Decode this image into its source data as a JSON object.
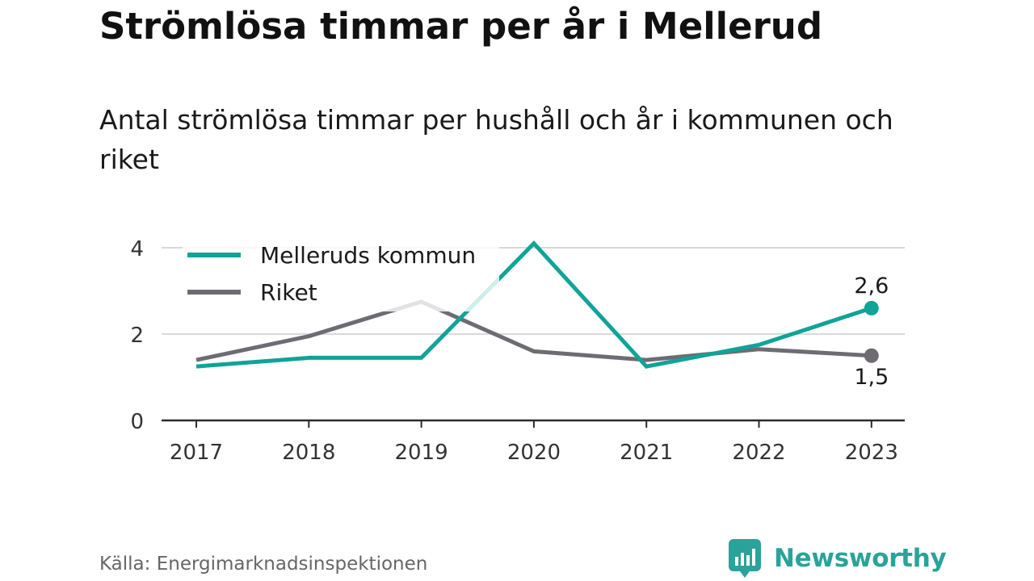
{
  "title": "Strömlösa timmar per år i Mellerud",
  "subtitle": "Antal strömlösa timmar per hushåll och år i kommunen och riket",
  "source": "Källa: Energimarknadsinspektionen",
  "brand": {
    "name": "Newsworthy",
    "icon": "newsworthy-logo-icon",
    "color": "#2aa39a"
  },
  "chart_data": {
    "type": "line",
    "title": "",
    "xlabel": "",
    "ylabel": "",
    "categories": [
      "2017",
      "2018",
      "2019",
      "2020",
      "2021",
      "2022",
      "2023"
    ],
    "ylim": [
      0,
      4
    ],
    "yticks": [
      0,
      2,
      4
    ],
    "grid": true,
    "legend": "top-left",
    "series": [
      {
        "name": "Melleruds kommun",
        "color": "#10a398",
        "values": [
          1.25,
          1.45,
          1.45,
          4.1,
          1.25,
          1.75,
          2.6
        ],
        "end_label": "2,6"
      },
      {
        "name": "Riket",
        "color": "#6e6c72",
        "values": [
          1.4,
          1.95,
          2.75,
          1.6,
          1.4,
          1.65,
          1.5
        ],
        "end_label": "1,5"
      }
    ]
  }
}
